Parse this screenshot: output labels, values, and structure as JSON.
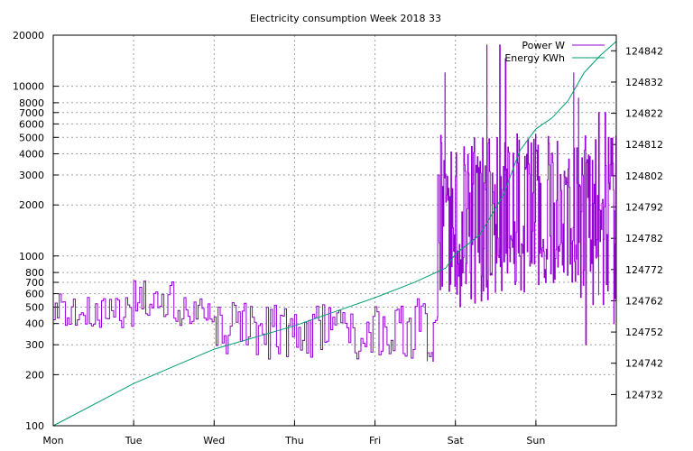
{
  "chart_data": {
    "type": "line",
    "title": "Electricity consumption Week 2018 33",
    "xlabel": "",
    "ylabel": "",
    "y2label": "",
    "x_ticks": [
      "Mon",
      "Tue",
      "Wed",
      "Thu",
      "Fri",
      "Sat",
      "Sun"
    ],
    "x_range_days": [
      0,
      7
    ],
    "y_scale": "log",
    "ylim": [
      100,
      20000
    ],
    "y_ticks": [
      100,
      200,
      300,
      400,
      500,
      600,
      700,
      800,
      1000,
      2000,
      3000,
      4000,
      5000,
      6000,
      7000,
      8000,
      10000,
      20000
    ],
    "y_tick_labels": [
      "100",
      "200",
      "300",
      "400",
      "500",
      "600",
      "700",
      "800",
      "1000",
      "2000",
      "3000",
      "4000",
      "5000",
      "6000",
      "7000",
      "8000",
      "10000",
      "20000"
    ],
    "y2_scale": "linear",
    "y2lim": [
      124722,
      124847
    ],
    "y2_ticks": [
      124732,
      124742,
      124752,
      124762,
      124772,
      124782,
      124792,
      124802,
      124812,
      124822,
      124832,
      124842
    ],
    "y2_tick_labels": [
      "124732",
      "124742",
      "124752",
      "124762",
      "124772",
      "124782",
      "124792",
      "124802",
      "124812",
      "124822",
      "124832",
      "124842"
    ],
    "grid": true,
    "legend_position": "top-right",
    "series": [
      {
        "name": "Power W",
        "axis": "left",
        "color": "#9400d3",
        "segments": [
          {
            "from_day": 0.0,
            "to_day": 0.5,
            "low": 380,
            "high": 600,
            "step_day": 0.025,
            "cycle_day": 0.1
          },
          {
            "from_day": 0.5,
            "to_day": 1.0,
            "low": 370,
            "high": 570,
            "step_day": 0.025,
            "cycle_day": 0.1
          },
          {
            "from_day": 1.0,
            "to_day": 1.5,
            "low": 420,
            "high": 720,
            "step_day": 0.025,
            "cycle_day": 0.1
          },
          {
            "from_day": 1.5,
            "to_day": 2.0,
            "low": 360,
            "high": 570,
            "step_day": 0.025,
            "cycle_day": 0.1
          },
          {
            "from_day": 2.0,
            "to_day": 2.5,
            "low": 250,
            "high": 550,
            "step_day": 0.025,
            "cycle_day": 0.1
          },
          {
            "from_day": 2.5,
            "to_day": 3.0,
            "low": 240,
            "high": 560,
            "step_day": 0.025,
            "cycle_day": 0.1
          },
          {
            "from_day": 3.0,
            "to_day": 3.5,
            "low": 240,
            "high": 520,
            "step_day": 0.025,
            "cycle_day": 0.1
          },
          {
            "from_day": 3.5,
            "to_day": 4.0,
            "low": 240,
            "high": 480,
            "step_day": 0.025,
            "cycle_day": 0.1
          },
          {
            "from_day": 4.0,
            "to_day": 4.4,
            "low": 250,
            "high": 510,
            "step_day": 0.025,
            "cycle_day": 0.1
          },
          {
            "from_day": 4.4,
            "to_day": 4.8,
            "low": 250,
            "high": 600,
            "step_day": 0.025,
            "cycle_day": 0.1
          },
          {
            "from_day": 4.8,
            "to_day": 5.0,
            "low": 600,
            "high": 5200,
            "step_day": 0.008,
            "cycle_day": 0.05
          },
          {
            "from_day": 5.0,
            "to_day": 5.5,
            "low": 500,
            "high": 5200,
            "step_day": 0.008,
            "cycle_day": 0.05
          },
          {
            "from_day": 5.5,
            "to_day": 6.0,
            "low": 600,
            "high": 5300,
            "step_day": 0.008,
            "cycle_day": 0.05
          },
          {
            "from_day": 6.0,
            "to_day": 6.5,
            "low": 650,
            "high": 5200,
            "step_day": 0.008,
            "cycle_day": 0.05
          },
          {
            "from_day": 6.5,
            "to_day": 7.0,
            "low": 500,
            "high": 5200,
            "step_day": 0.008,
            "cycle_day": 0.05
          }
        ],
        "spikes": [
          {
            "day": 4.65,
            "value": 240
          },
          {
            "day": 4.72,
            "value": 240
          },
          {
            "day": 4.78,
            "value": 3000
          },
          {
            "day": 4.87,
            "value": 12000
          },
          {
            "day": 5.39,
            "value": 17500
          },
          {
            "day": 5.55,
            "value": 17500
          },
          {
            "day": 5.62,
            "value": 14500
          },
          {
            "day": 6.47,
            "value": 12000
          },
          {
            "day": 6.53,
            "value": 8500
          },
          {
            "day": 6.62,
            "value": 300
          },
          {
            "day": 6.78,
            "value": 7000
          },
          {
            "day": 6.86,
            "value": 7000
          },
          {
            "day": 6.97,
            "value": 400
          }
        ]
      },
      {
        "name": "Energy KWh",
        "axis": "right",
        "color": "#009e73",
        "points": [
          {
            "day": 0.0,
            "kwh": 124722.0
          },
          {
            "day": 1.0,
            "kwh": 124735.5
          },
          {
            "day": 2.0,
            "kwh": 124746.5
          },
          {
            "day": 3.0,
            "kwh": 124754.0
          },
          {
            "day": 4.0,
            "kwh": 124763.0
          },
          {
            "day": 4.5,
            "kwh": 124768.0
          },
          {
            "day": 4.88,
            "kwh": 124772.5
          },
          {
            "day": 5.0,
            "kwh": 124777.0
          },
          {
            "day": 5.3,
            "kwh": 124783.0
          },
          {
            "day": 5.6,
            "kwh": 124796.0
          },
          {
            "day": 5.8,
            "kwh": 124810.0
          },
          {
            "day": 6.0,
            "kwh": 124817.0
          },
          {
            "day": 6.2,
            "kwh": 124820.5
          },
          {
            "day": 6.4,
            "kwh": 124826.0
          },
          {
            "day": 6.6,
            "kwh": 124835.0
          },
          {
            "day": 6.8,
            "kwh": 124840.5
          },
          {
            "day": 7.0,
            "kwh": 124845.0
          }
        ]
      }
    ]
  }
}
